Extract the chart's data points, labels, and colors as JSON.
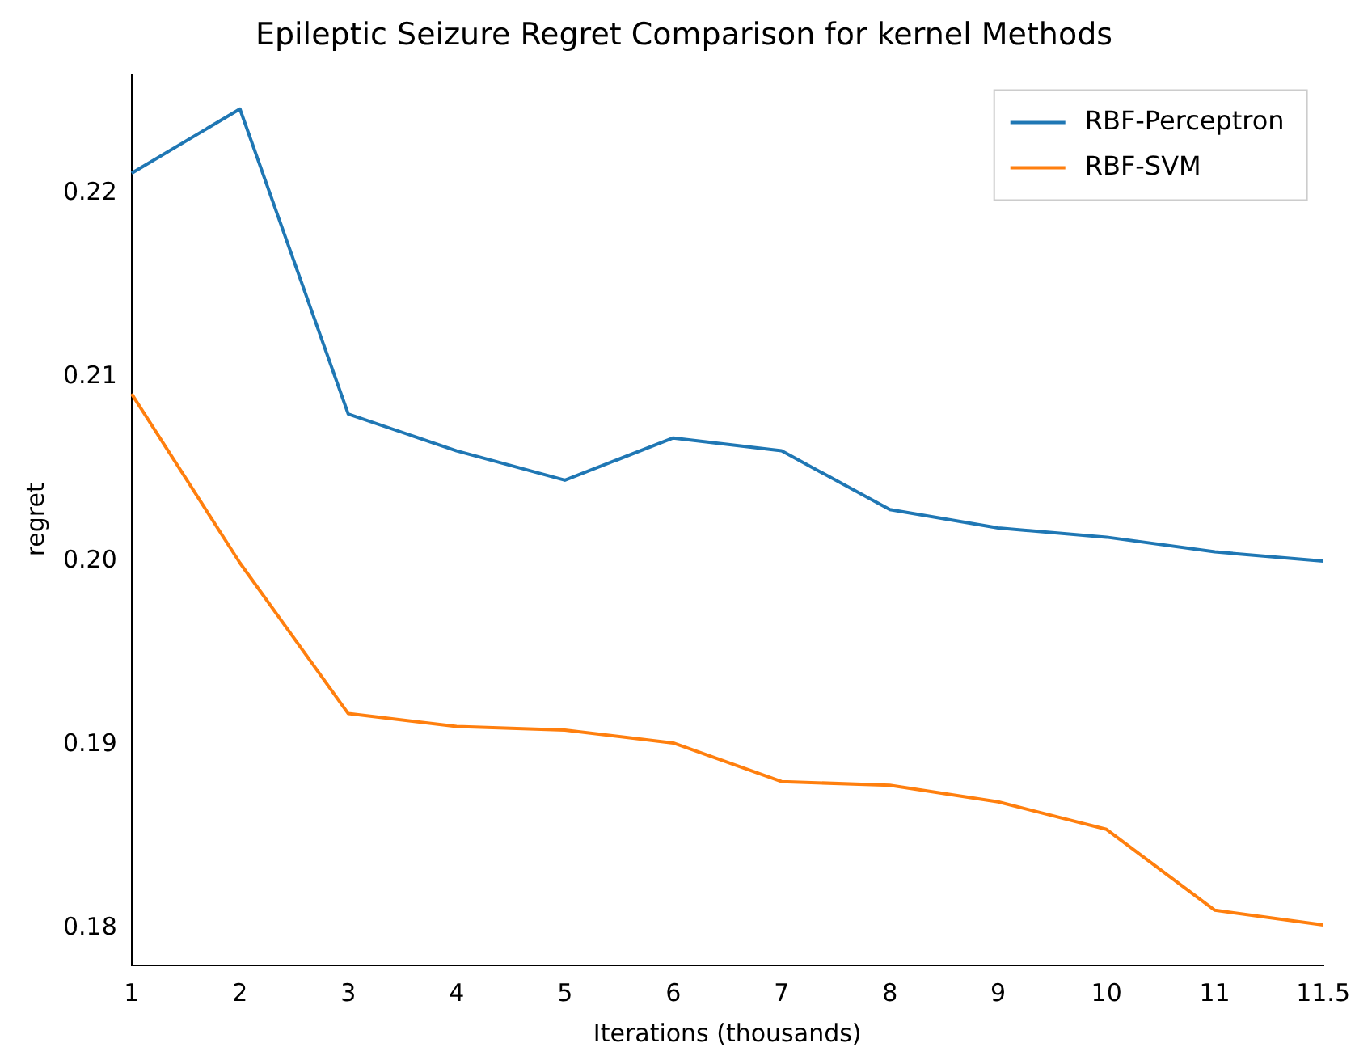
{
  "chart_data": {
    "type": "line",
    "title": "Epileptic Seizure Regret Comparison for kernel Methods",
    "xlabel": "Iterations (thousands)",
    "ylabel": "regret",
    "categories": [
      "1",
      "2",
      "3",
      "4",
      "5",
      "6",
      "7",
      "8",
      "9",
      "10",
      "11",
      "11.5"
    ],
    "series": [
      {
        "name": "RBF-Perceptron",
        "color": "#1f77b4",
        "values": [
          0.2211,
          0.2246,
          0.208,
          0.206,
          0.2044,
          0.2067,
          0.206,
          0.2028,
          0.2018,
          0.2013,
          0.2005,
          0.2
        ]
      },
      {
        "name": "RBF-SVM",
        "color": "#ff7f0e",
        "values": [
          0.2091,
          0.1999,
          0.1917,
          0.191,
          0.1908,
          0.1901,
          0.188,
          0.1878,
          0.1869,
          0.1854,
          0.181,
          0.1802
        ]
      }
    ],
    "ylim": [
      0.178,
      0.2265
    ],
    "yticks": [
      0.18,
      0.19,
      {
        "value": 0.2,
        "label": "0.20"
      },
      0.21,
      0.22
    ],
    "legend": "top right",
    "marker": "none",
    "line_style": "solid",
    "grid": false
  }
}
